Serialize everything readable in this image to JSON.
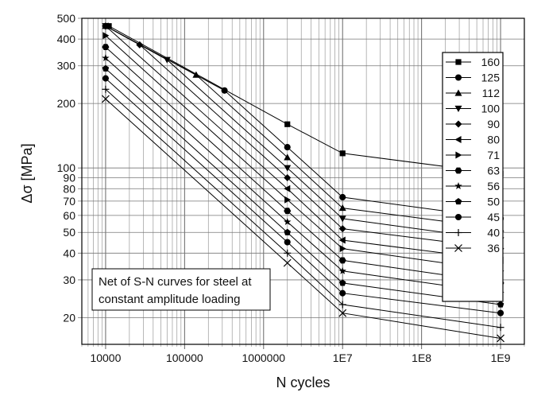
{
  "chart_data": {
    "type": "line",
    "title": "",
    "xlabel": "N cycles",
    "ylabel": "Δσ [MPa]",
    "xscale": "log",
    "yscale": "log",
    "xlim": [
      5000,
      2000000000
    ],
    "ylim": [
      15,
      500
    ],
    "grid": true,
    "legend_position": "right",
    "x_ticks": [
      {
        "value": 10000,
        "label": "10000"
      },
      {
        "value": 100000,
        "label": "100000"
      },
      {
        "value": 1000000,
        "label": "1000000"
      },
      {
        "value": 10000000,
        "label": "1E7"
      },
      {
        "value": 100000000,
        "label": "1E8"
      },
      {
        "value": 1000000000,
        "label": "1E9"
      }
    ],
    "y_ticks": [
      {
        "value": 20,
        "label": "20"
      },
      {
        "value": 30,
        "label": "30"
      },
      {
        "value": 40,
        "label": "40"
      },
      {
        "value": 50,
        "label": "50"
      },
      {
        "value": 60,
        "label": "60"
      },
      {
        "value": 70,
        "label": "70"
      },
      {
        "value": 80,
        "label": "80"
      },
      {
        "value": 90,
        "label": "90"
      },
      {
        "value": 100,
        "label": "100"
      },
      {
        "value": 200,
        "label": "200"
      },
      {
        "value": 300,
        "label": "300"
      },
      {
        "value": 400,
        "label": "400"
      },
      {
        "value": 500,
        "label": "500"
      }
    ],
    "series": [
      {
        "name": "160",
        "marker": "square",
        "x": [
          11000,
          2000000,
          10000000,
          1000000000
        ],
        "y": [
          460,
          160,
          117,
          94
        ]
      },
      {
        "name": "125",
        "marker": "circle",
        "x": [
          10000,
          320000,
          2000000,
          10000000,
          1000000000
        ],
        "y": [
          460,
          230,
          125,
          73,
          58
        ]
      },
      {
        "name": "112",
        "marker": "triangle-up",
        "x": [
          10000,
          140000,
          2000000,
          10000000,
          1000000000
        ],
        "y": [
          460,
          272,
          112,
          65,
          52
        ]
      },
      {
        "name": "100",
        "marker": "triangle-down",
        "x": [
          10000,
          60000,
          2000000,
          10000000,
          1000000000
        ],
        "y": [
          460,
          320,
          100,
          58,
          46
        ]
      },
      {
        "name": "90",
        "marker": "diamond",
        "x": [
          10000,
          27000,
          2000000,
          10000000,
          1000000000
        ],
        "y": [
          460,
          376,
          90,
          52,
          42
        ]
      },
      {
        "name": "80",
        "marker": "triangle-left",
        "x": [
          10000,
          2000000,
          10000000,
          1000000000
        ],
        "y": [
          460,
          80,
          46,
          37
        ]
      },
      {
        "name": "71",
        "marker": "triangle-right",
        "x": [
          10000,
          2000000,
          10000000,
          1000000000
        ],
        "y": [
          415,
          71,
          42,
          33
        ]
      },
      {
        "name": "63",
        "marker": "hexagon",
        "x": [
          10000,
          2000000,
          10000000,
          1000000000
        ],
        "y": [
          367,
          63,
          37,
          29
        ]
      },
      {
        "name": "56",
        "marker": "star",
        "x": [
          10000,
          2000000,
          10000000,
          1000000000
        ],
        "y": [
          326,
          56,
          33,
          26
        ]
      },
      {
        "name": "50",
        "marker": "pentagon",
        "x": [
          10000,
          2000000,
          10000000,
          1000000000
        ],
        "y": [
          291,
          50,
          29,
          23
        ]
      },
      {
        "name": "45",
        "marker": "circle",
        "x": [
          10000,
          2000000,
          10000000,
          1000000000
        ],
        "y": [
          262,
          45,
          26,
          21
        ]
      },
      {
        "name": "40",
        "marker": "plus",
        "x": [
          10000,
          2000000,
          10000000,
          1000000000
        ],
        "y": [
          233,
          40,
          23,
          18
        ]
      },
      {
        "name": "36",
        "marker": "cross",
        "x": [
          10000,
          2000000,
          10000000,
          1000000000
        ],
        "y": [
          210,
          36,
          21,
          16
        ]
      }
    ],
    "annotation": {
      "lines": [
        "Net of S-N curves for steel at",
        "constant amplitude loading"
      ]
    }
  }
}
